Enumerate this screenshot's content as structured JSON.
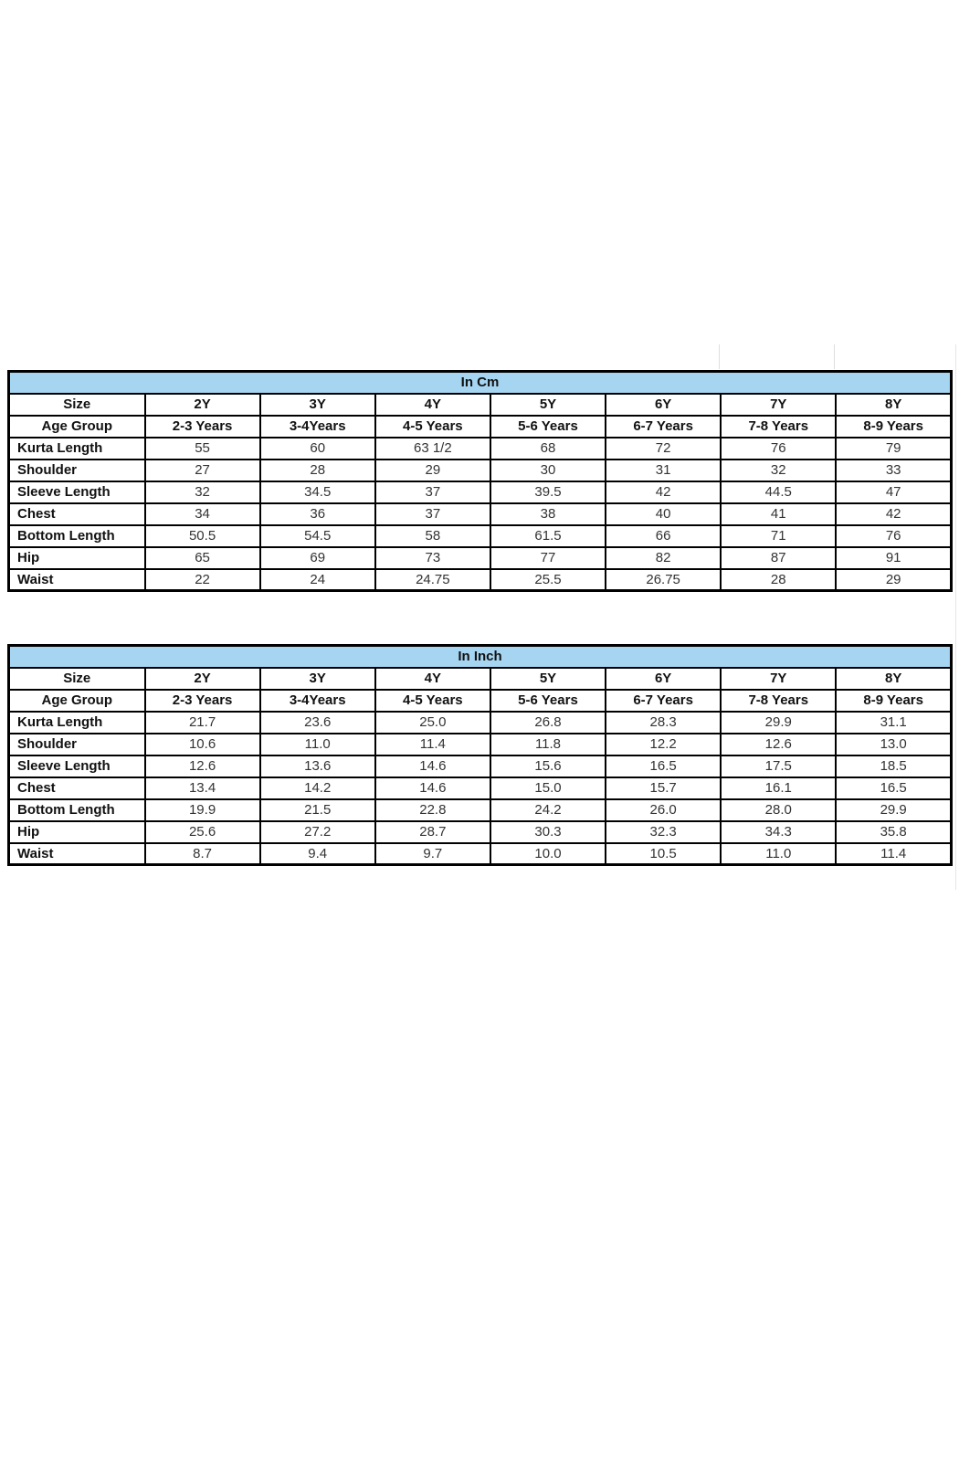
{
  "colors": {
    "header_bg": "#a6d5f2",
    "border": "#000000",
    "label_text": "#111111",
    "value_text": "#333333"
  },
  "tables": [
    {
      "title": "In Cm",
      "size_label": "Size",
      "sizes": [
        "2Y",
        "3Y",
        "4Y",
        "5Y",
        "6Y",
        "7Y",
        "8Y"
      ],
      "age_label": "Age Group",
      "ages": [
        "2-3 Years",
        "3-4Years",
        "4-5 Years",
        "5-6 Years",
        "6-7 Years",
        "7-8 Years",
        "8-9 Years"
      ],
      "rows": [
        {
          "label": "Kurta Length",
          "values": [
            "55",
            "60",
            "63 1/2",
            "68",
            "72",
            "76",
            "79"
          ]
        },
        {
          "label": "Shoulder",
          "values": [
            "27",
            "28",
            "29",
            "30",
            "31",
            "32",
            "33"
          ]
        },
        {
          "label": "Sleeve Length",
          "values": [
            "32",
            "34.5",
            "37",
            "39.5",
            "42",
            "44.5",
            "47"
          ]
        },
        {
          "label": "Chest",
          "values": [
            "34",
            "36",
            "37",
            "38",
            "40",
            "41",
            "42"
          ]
        },
        {
          "label": "Bottom Length",
          "values": [
            "50.5",
            "54.5",
            "58",
            "61.5",
            "66",
            "71",
            "76"
          ]
        },
        {
          "label": "Hip",
          "values": [
            "65",
            "69",
            "73",
            "77",
            "82",
            "87",
            "91"
          ]
        },
        {
          "label": "Waist",
          "values": [
            "22",
            "24",
            "24.75",
            "25.5",
            "26.75",
            "28",
            "29"
          ]
        }
      ]
    },
    {
      "title": "In Inch",
      "size_label": "Size",
      "sizes": [
        "2Y",
        "3Y",
        "4Y",
        "5Y",
        "6Y",
        "7Y",
        "8Y"
      ],
      "age_label": "Age Group",
      "ages": [
        "2-3 Years",
        "3-4Years",
        "4-5 Years",
        "5-6 Years",
        "6-7 Years",
        "7-8 Years",
        "8-9 Years"
      ],
      "rows": [
        {
          "label": "Kurta Length",
          "values": [
            "21.7",
            "23.6",
            "25.0",
            "26.8",
            "28.3",
            "29.9",
            "31.1"
          ]
        },
        {
          "label": "Shoulder",
          "values": [
            "10.6",
            "11.0",
            "11.4",
            "11.8",
            "12.2",
            "12.6",
            "13.0"
          ]
        },
        {
          "label": "Sleeve Length",
          "values": [
            "12.6",
            "13.6",
            "14.6",
            "15.6",
            "16.5",
            "17.5",
            "18.5"
          ]
        },
        {
          "label": "Chest",
          "values": [
            "13.4",
            "14.2",
            "14.6",
            "15.0",
            "15.7",
            "16.1",
            "16.5"
          ]
        },
        {
          "label": "Bottom Length",
          "values": [
            "19.9",
            "21.5",
            "22.8",
            "24.2",
            "26.0",
            "28.0",
            "29.9"
          ]
        },
        {
          "label": "Hip",
          "values": [
            "25.6",
            "27.2",
            "28.7",
            "30.3",
            "32.3",
            "34.3",
            "35.8"
          ]
        },
        {
          "label": "Waist",
          "values": [
            "8.7",
            "9.4",
            "9.7",
            "10.0",
            "10.5",
            "11.0",
            "11.4"
          ]
        }
      ]
    }
  ]
}
